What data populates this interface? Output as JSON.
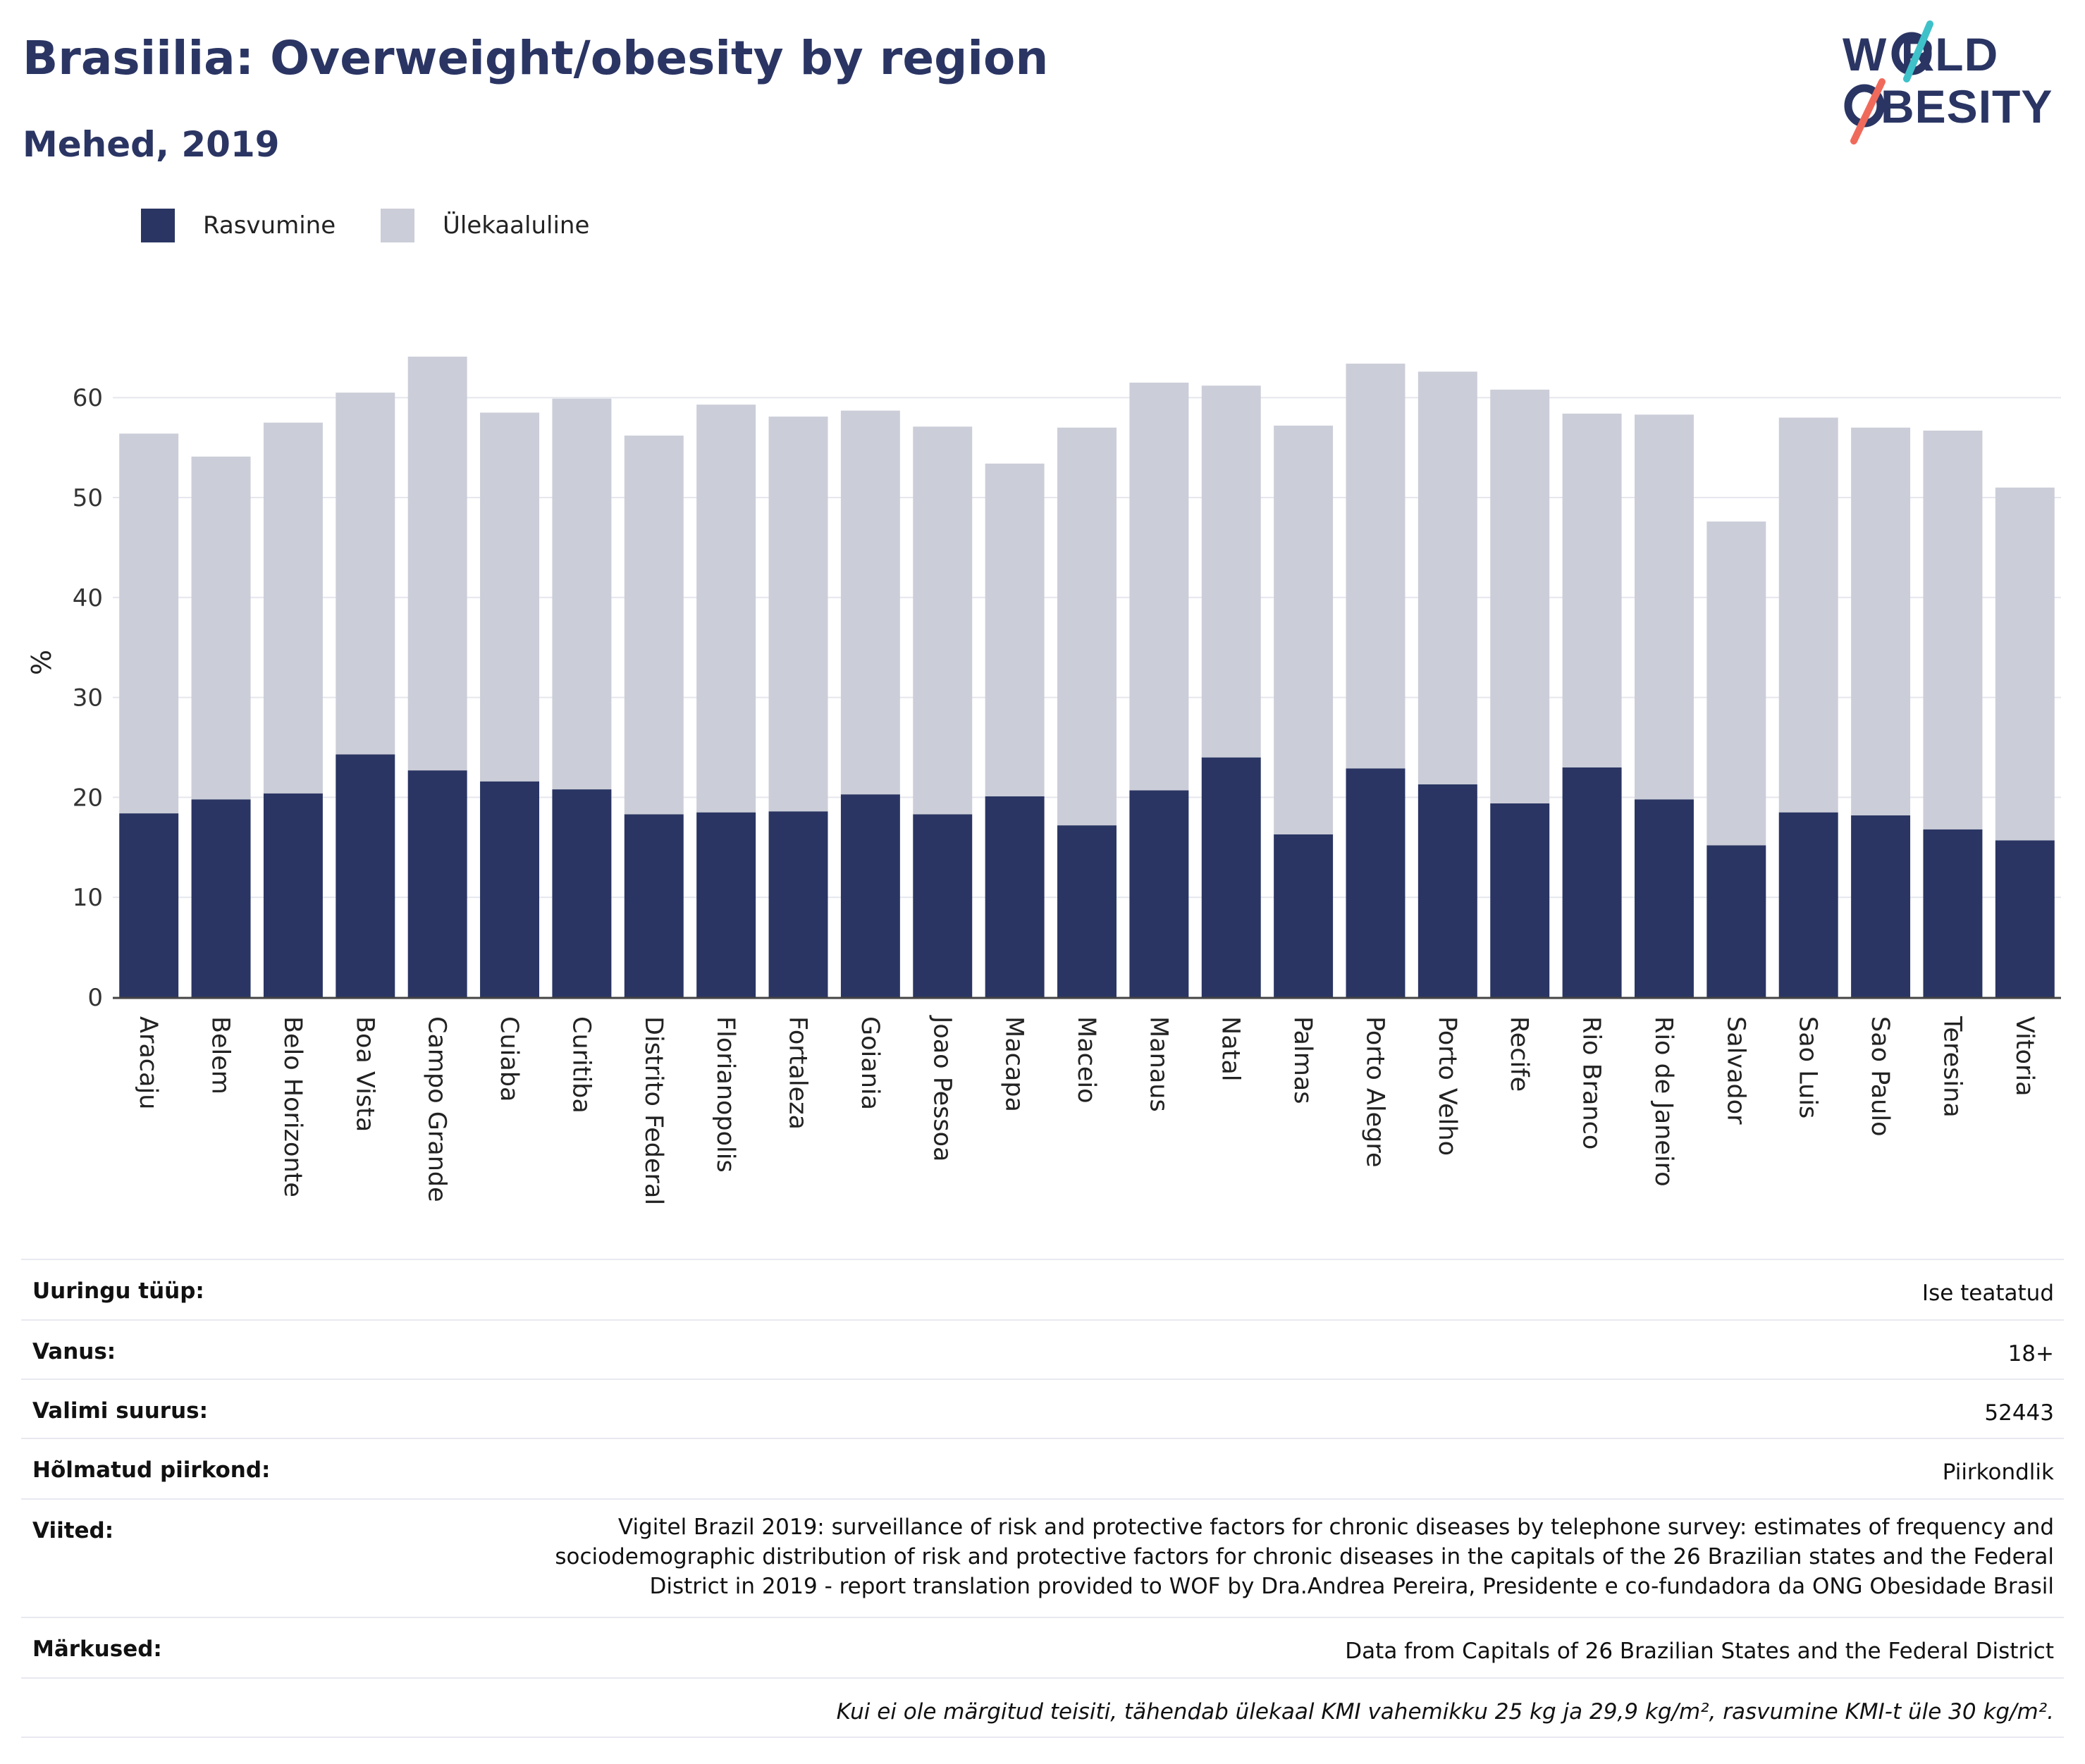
{
  "header": {
    "title": "Brasiilia: Overweight/obesity by region",
    "subtitle": "Mehed, 2019"
  },
  "logo": {
    "line1": "W RLD",
    "line2": "BESITY",
    "accent_colors": [
      "#3fc1c9",
      "#f06a5b"
    ],
    "text_color": "#2a3563"
  },
  "colors": {
    "obesity": "#2a3563",
    "overweight": "#cbcdd8",
    "axis": "#444444",
    "grid": "#e6e7ee"
  },
  "legend": {
    "obesity_label": "Rasvumine",
    "overweight_label": "Ülekaaluline"
  },
  "chart_data": {
    "type": "bar",
    "stacked": true,
    "title": "Brasiilia: Overweight/obesity by region",
    "subtitle": "Mehed, 2019",
    "xlabel": "",
    "ylabel": "%",
    "ylim": [
      0,
      66
    ],
    "yticks": [
      0,
      10,
      20,
      30,
      40,
      50,
      60
    ],
    "grid": true,
    "legend_position": "top-left",
    "categories": [
      "Aracaju",
      "Belem",
      "Belo Horizonte",
      "Boa Vista",
      "Campo Grande",
      "Cuiaba",
      "Curitiba",
      "Distrito Federal",
      "Florianopolis",
      "Fortaleza",
      "Goiania",
      "Joao Pessoa",
      "Macapa",
      "Maceio",
      "Manaus",
      "Natal",
      "Palmas",
      "Porto Alegre",
      "Porto Velho",
      "Recife",
      "Rio Branco",
      "Rio de Janeiro",
      "Salvador",
      "Sao Luis",
      "Sao Paulo",
      "Teresina",
      "Vitoria"
    ],
    "series": [
      {
        "name": "Rasvumine",
        "values": [
          18.4,
          19.8,
          20.4,
          24.3,
          22.7,
          21.6,
          20.8,
          18.3,
          18.5,
          18.6,
          20.3,
          18.3,
          20.1,
          17.2,
          20.7,
          24.0,
          16.3,
          22.9,
          21.3,
          19.4,
          23.0,
          19.8,
          15.2,
          18.5,
          18.2,
          16.8,
          15.7
        ]
      },
      {
        "name": "Ülekaaluline",
        "values": [
          38.0,
          34.3,
          37.1,
          36.2,
          41.4,
          36.9,
          39.1,
          37.9,
          40.8,
          39.5,
          38.4,
          38.8,
          33.3,
          39.8,
          40.8,
          37.2,
          40.9,
          40.5,
          41.3,
          41.4,
          35.4,
          38.5,
          32.4,
          39.5,
          38.8,
          39.9,
          35.3
        ]
      }
    ]
  },
  "meta": {
    "rows": [
      {
        "key": "Uuringu tüüp:",
        "value": "Ise teatatud"
      },
      {
        "key": "Vanus:",
        "value": "18+"
      },
      {
        "key": "Valimi suurus:",
        "value": "52443"
      },
      {
        "key": "Hõlmatud piirkond:",
        "value": "Piirkondlik"
      },
      {
        "key": "Viited:",
        "value": "Vigitel Brazil 2019: surveillance of risk and protective factors for chronic diseases by telephone survey: estimates of frequency and sociodemographic distribution of risk and protective factors for chronic diseases in the capitals of the 26 Brazilian states and the Federal District in 2019 - report translation provided to WOF by Dra.Andrea Pereira, Presidente e co-fundadora da ONG Obesidade Brasil"
      },
      {
        "key": "Märkused:",
        "value": "Data from Capitals of 26 Brazilian States and the Federal District"
      },
      {
        "key": "",
        "value": "Kui ei ole märgitud teisiti, tähendab ülekaal KMI vahemikku 25 kg ja 29,9 kg/m², rasvumine KMI-t üle 30 kg/m²."
      }
    ]
  }
}
